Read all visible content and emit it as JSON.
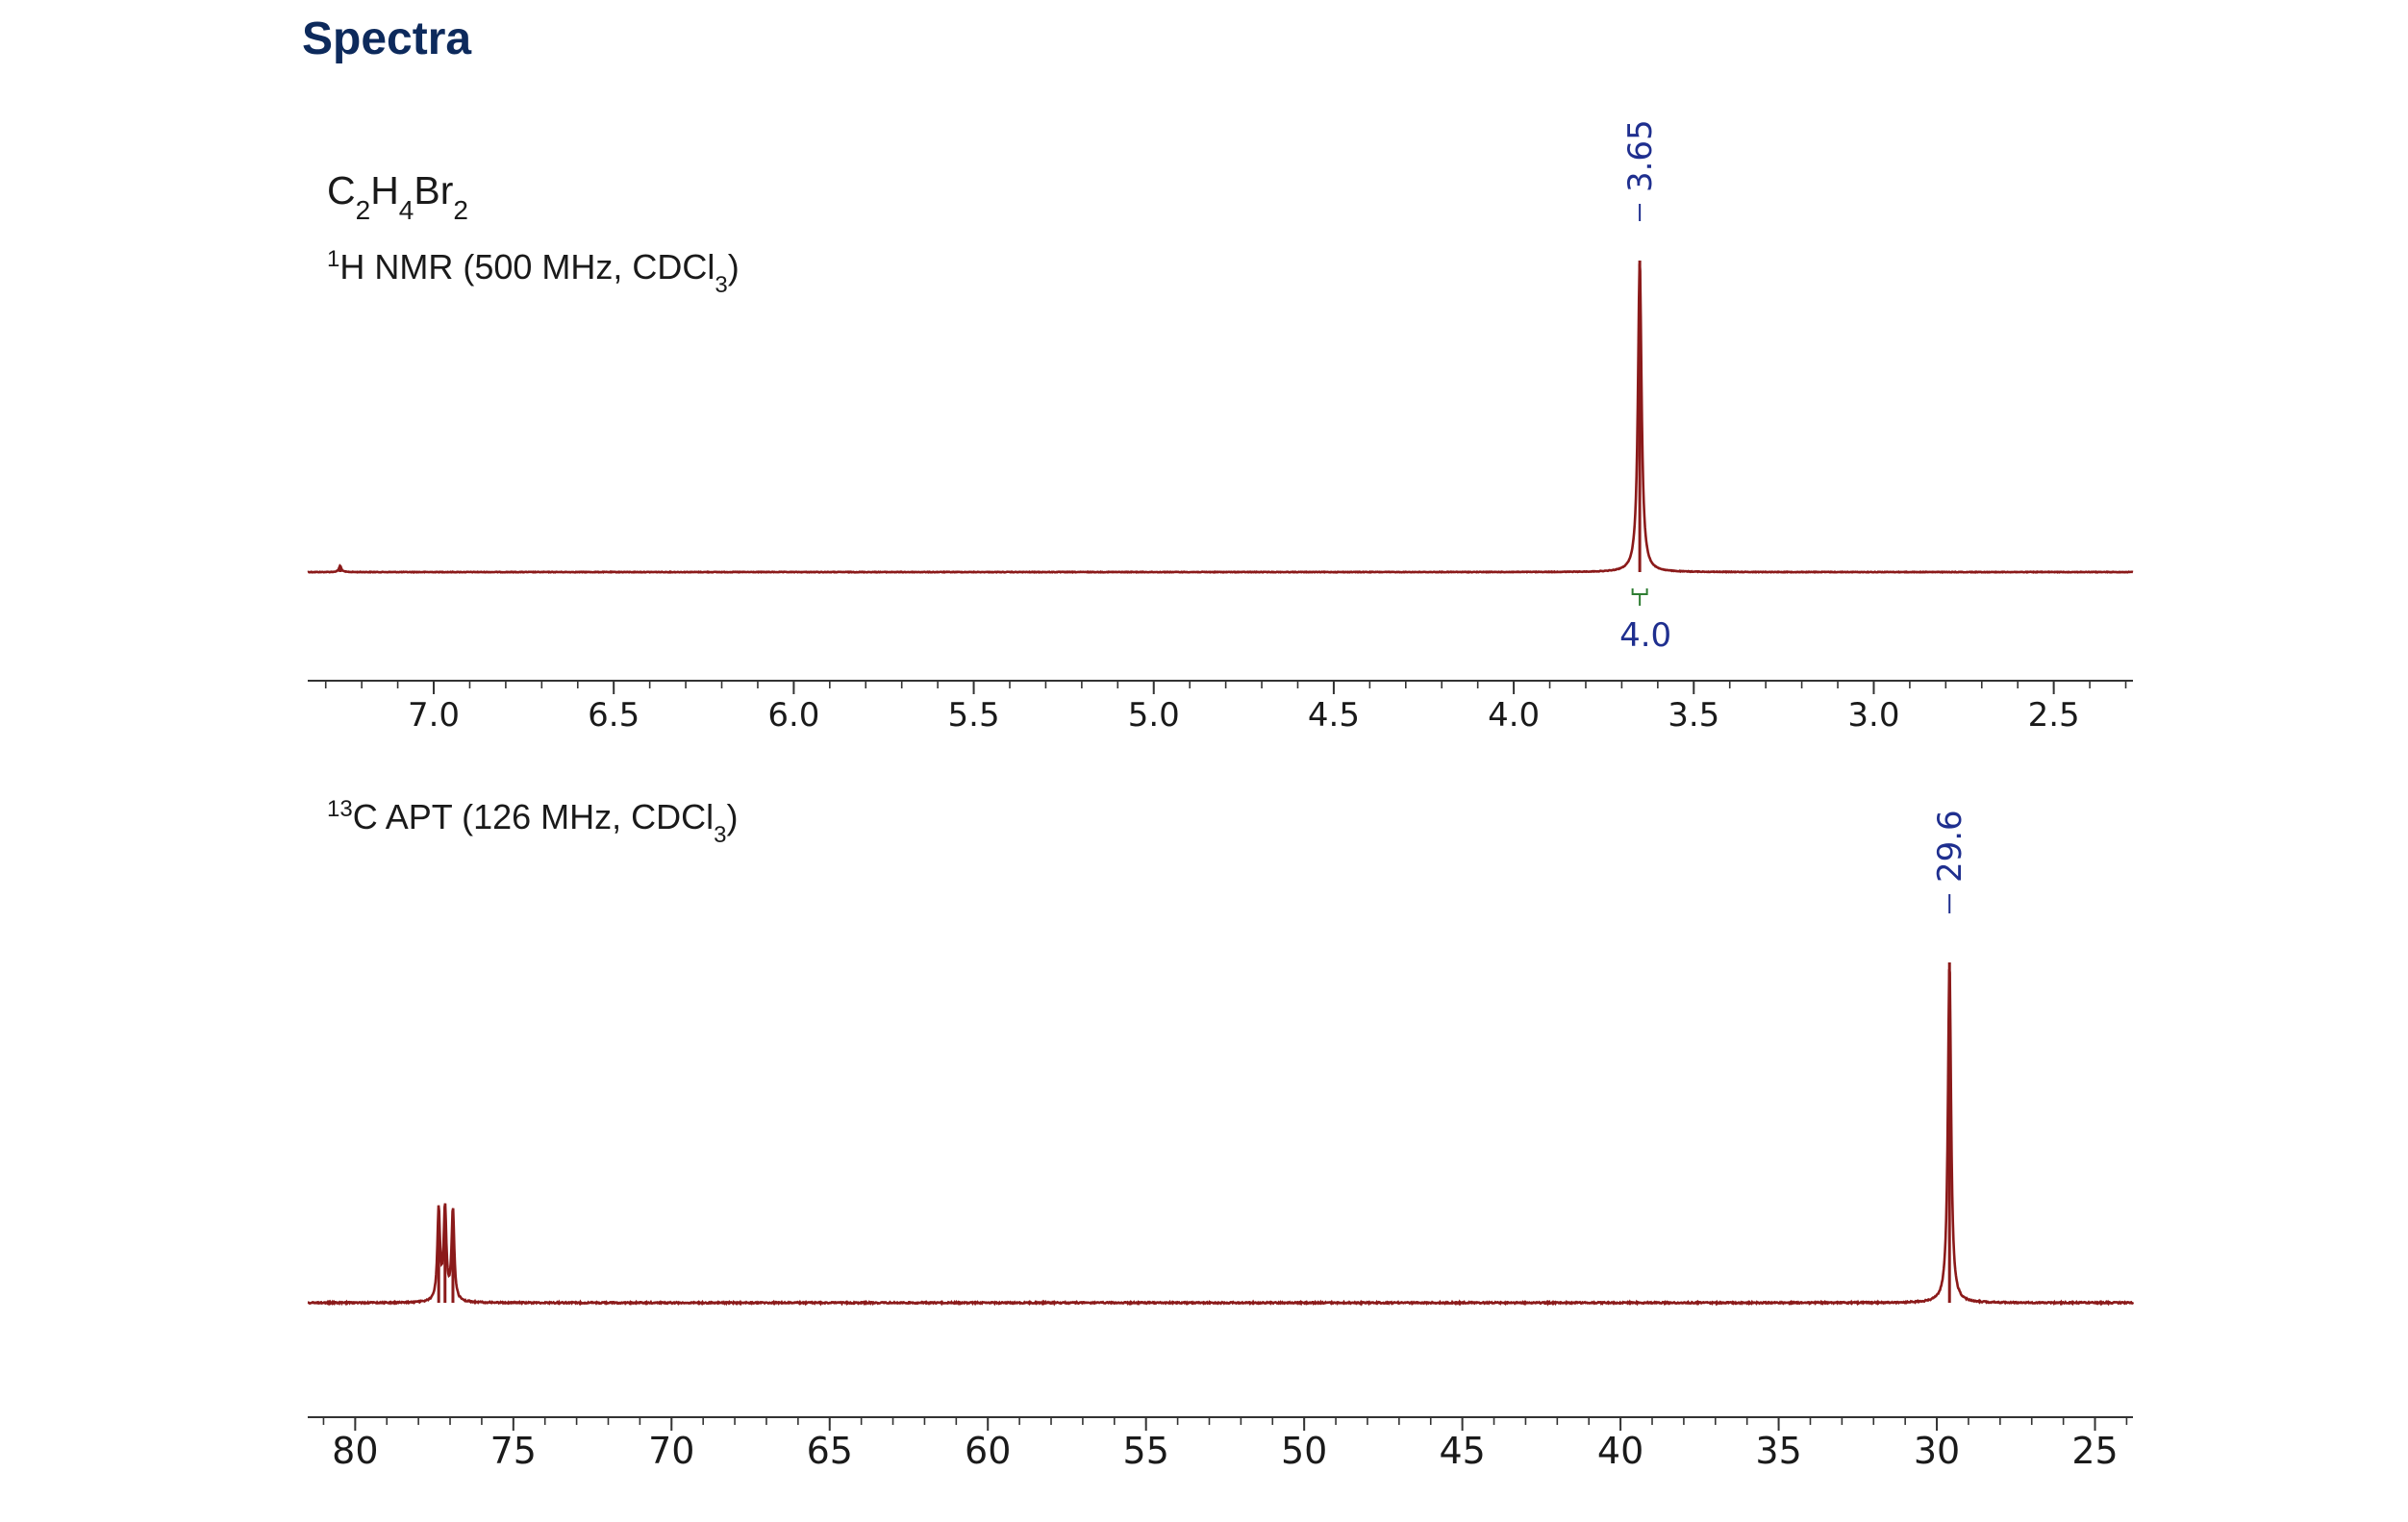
{
  "page": {
    "heading": "Spectra"
  },
  "colors": {
    "heading": "#0d2a5c",
    "spectrum": "#8b1a1a",
    "peak_label": "#1f2f8f",
    "integral": "#2e7d32",
    "axis": "#333333"
  },
  "chart_data": [
    {
      "type": "line",
      "compound": {
        "base": [
          "C",
          "H",
          "Br"
        ],
        "subscripts": [
          "2",
          "4",
          "2"
        ]
      },
      "experiment": {
        "superscript": "1",
        "text": "H NMR (500 MHz, CDCl",
        "subscript": "3",
        "close": ")"
      },
      "xlim": [
        7.35,
        2.28
      ],
      "x_reversed": true,
      "xticks": [
        7.0,
        6.5,
        6.0,
        5.5,
        5.0,
        4.5,
        4.0,
        3.5,
        3.0,
        2.5
      ],
      "xtick_labels": [
        "7.0",
        "6.5",
        "6.0",
        "5.5",
        "5.0",
        "4.5",
        "4.0",
        "3.5",
        "3.0",
        "2.5"
      ],
      "minor_tick_step": 0.1,
      "baseline": 0,
      "peaks": [
        {
          "shift": 7.26,
          "height": 0.02,
          "width": 0.004
        },
        {
          "shift": 3.65,
          "height": 1.0,
          "width": 0.006
        }
      ],
      "peak_labels": [
        "3.65"
      ],
      "peak_label_shifts": [
        3.65
      ],
      "integrals": [
        {
          "from": 3.67,
          "to": 3.63,
          "value": "4.0"
        }
      ],
      "grid": false
    },
    {
      "type": "line",
      "experiment": {
        "superscript": "13",
        "text": "C APT (126 MHz, CDCl",
        "subscript": "3",
        "close": ")"
      },
      "xlim": [
        81.5,
        23.8
      ],
      "x_reversed": true,
      "xticks": [
        80,
        75,
        70,
        65,
        60,
        55,
        50,
        45,
        40,
        35,
        30,
        25
      ],
      "xtick_labels": [
        "80",
        "75",
        "70",
        "65",
        "60",
        "55",
        "50",
        "45",
        "40",
        "35",
        "30",
        "25"
      ],
      "minor_tick_step": 1,
      "baseline": 0,
      "peaks": [
        {
          "shift": 77.36,
          "height": 0.27,
          "width": 0.05
        },
        {
          "shift": 77.16,
          "height": 0.27,
          "width": 0.05
        },
        {
          "shift": 76.91,
          "height": 0.27,
          "width": 0.05
        },
        {
          "shift": 29.6,
          "height": 1.0,
          "width": 0.06
        }
      ],
      "peak_labels": [
        "29.6"
      ],
      "peak_label_shifts": [
        29.6
      ],
      "integrals": [],
      "grid": false
    }
  ]
}
